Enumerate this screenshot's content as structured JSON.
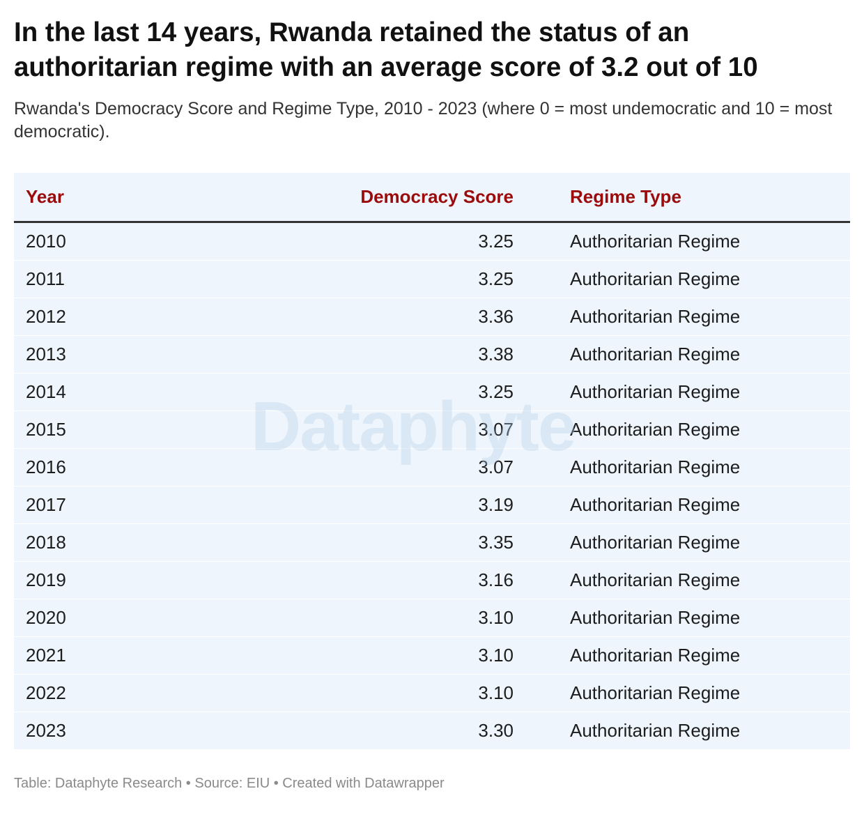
{
  "header": {
    "title": "In the last 14 years, Rwanda retained the status of an authoritarian regime with an average score of 3.2 out of 10",
    "subtitle": "Rwanda's Democracy Score and Regime Type, 2010 - 2023 (where 0 = most undemocratic and 10 = most democratic)."
  },
  "table": {
    "columns": [
      "Year",
      "Democracy Score",
      "Regime Type"
    ],
    "rows": [
      [
        "2010",
        "3.25",
        "Authoritarian Regime"
      ],
      [
        "2011",
        "3.25",
        "Authoritarian Regime"
      ],
      [
        "2012",
        "3.36",
        "Authoritarian Regime"
      ],
      [
        "2013",
        "3.38",
        "Authoritarian Regime"
      ],
      [
        "2014",
        "3.25",
        "Authoritarian Regime"
      ],
      [
        "2015",
        "3.07",
        "Authoritarian Regime"
      ],
      [
        "2016",
        "3.07",
        "Authoritarian Regime"
      ],
      [
        "2017",
        "3.19",
        "Authoritarian Regime"
      ],
      [
        "2018",
        "3.35",
        "Authoritarian Regime"
      ],
      [
        "2019",
        "3.16",
        "Authoritarian Regime"
      ],
      [
        "2020",
        "3.10",
        "Authoritarian Regime"
      ],
      [
        "2021",
        "3.10",
        "Authoritarian Regime"
      ],
      [
        "2022",
        "3.10",
        "Authoritarian Regime"
      ],
      [
        "2023",
        "3.30",
        "Authoritarian Regime"
      ]
    ]
  },
  "watermark": "Dataphyte",
  "footer": "Table: Dataphyte Research • Source: EIU • Created with Datawrapper"
}
